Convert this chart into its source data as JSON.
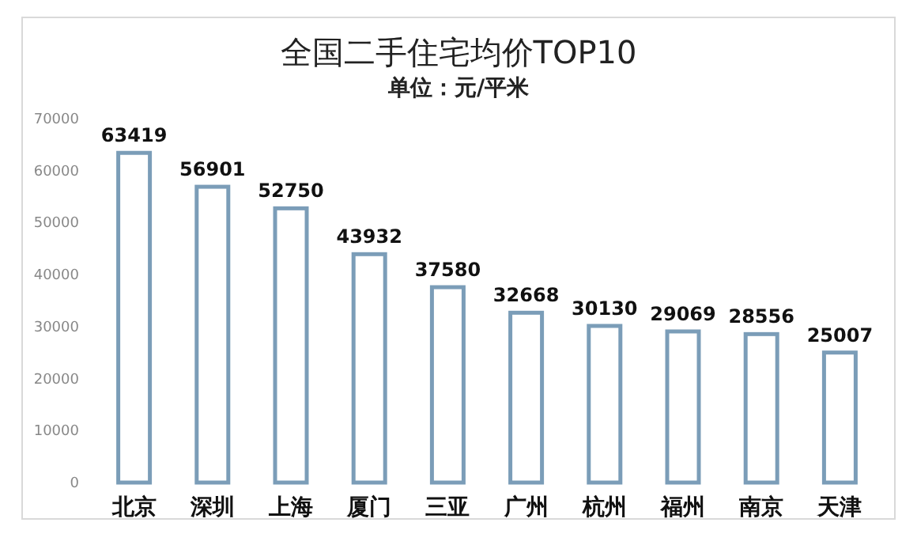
{
  "chart_data": {
    "type": "bar",
    "title": "全国二手住宅均价TOP10",
    "subtitle": "单位：元/平米",
    "categories": [
      "北京",
      "深圳",
      "上海",
      "厦门",
      "三亚",
      "广州",
      "杭州",
      "福州",
      "南京",
      "天津"
    ],
    "values": [
      63419,
      56901,
      52750,
      43932,
      37580,
      32668,
      30130,
      29069,
      28556,
      25007
    ],
    "color": "#7b9db8",
    "data_labels": true,
    "grid": false,
    "ylim": [
      0,
      70000
    ],
    "yticks": [
      0,
      10000,
      20000,
      30000,
      40000,
      50000,
      60000,
      70000
    ]
  }
}
